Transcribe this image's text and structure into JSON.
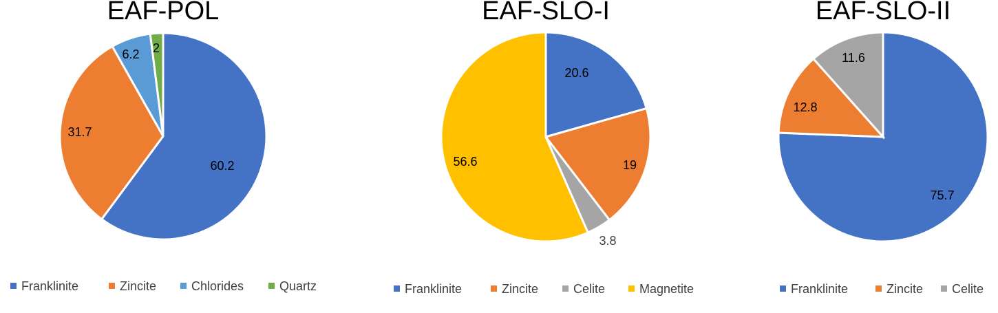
{
  "colors": {
    "franklinite": "#4472C4",
    "zincite": "#ED7D31",
    "chlorides": "#5B9BD5",
    "quartz": "#70AD47",
    "celite": "#A5A5A5",
    "magnetite": "#FFC000"
  },
  "chart_data": [
    {
      "type": "pie",
      "title": "EAF-POL",
      "slices": [
        {
          "name": "Franklinite",
          "value": 60.2,
          "label": "60.2",
          "color": "#4472C4"
        },
        {
          "name": "Zincite",
          "value": 31.7,
          "label": "31.7",
          "color": "#ED7D31"
        },
        {
          "name": "Chlorides",
          "value": 6.2,
          "label": "6.2",
          "color": "#5B9BD5"
        },
        {
          "name": "Quartz",
          "value": 2,
          "label": "2",
          "color": "#70AD47"
        }
      ],
      "legend": [
        "Franklinite",
        "Zincite",
        "Chlorides",
        "Quartz"
      ],
      "legend_position": "bottom"
    },
    {
      "type": "pie",
      "title": "EAF-SLO-I",
      "slices": [
        {
          "name": "Franklinite",
          "value": 20.6,
          "label": "20.6",
          "color": "#4472C4"
        },
        {
          "name": "Zincite",
          "value": 19,
          "label": "19",
          "color": "#ED7D31"
        },
        {
          "name": "Celite",
          "value": 3.8,
          "label": "3.8",
          "color": "#A5A5A5"
        },
        {
          "name": "Magnetite",
          "value": 56.6,
          "label": "56.6",
          "color": "#FFC000"
        }
      ],
      "legend": [
        "Franklinite",
        "Zincite",
        "Celite",
        "Magnetite"
      ],
      "legend_position": "bottom"
    },
    {
      "type": "pie",
      "title": "EAF-SLO-II",
      "slices": [
        {
          "name": "Franklinite",
          "value": 75.7,
          "label": "75.7",
          "color": "#4472C4"
        },
        {
          "name": "Zincite",
          "value": 12.8,
          "label": "12.8",
          "color": "#ED7D31"
        },
        {
          "name": "Celite",
          "value": 11.6,
          "label": "11.6",
          "color": "#A5A5A5"
        }
      ],
      "legend": [
        "Franklinite",
        "Zincite",
        "Celite"
      ],
      "legend_position": "bottom"
    }
  ]
}
